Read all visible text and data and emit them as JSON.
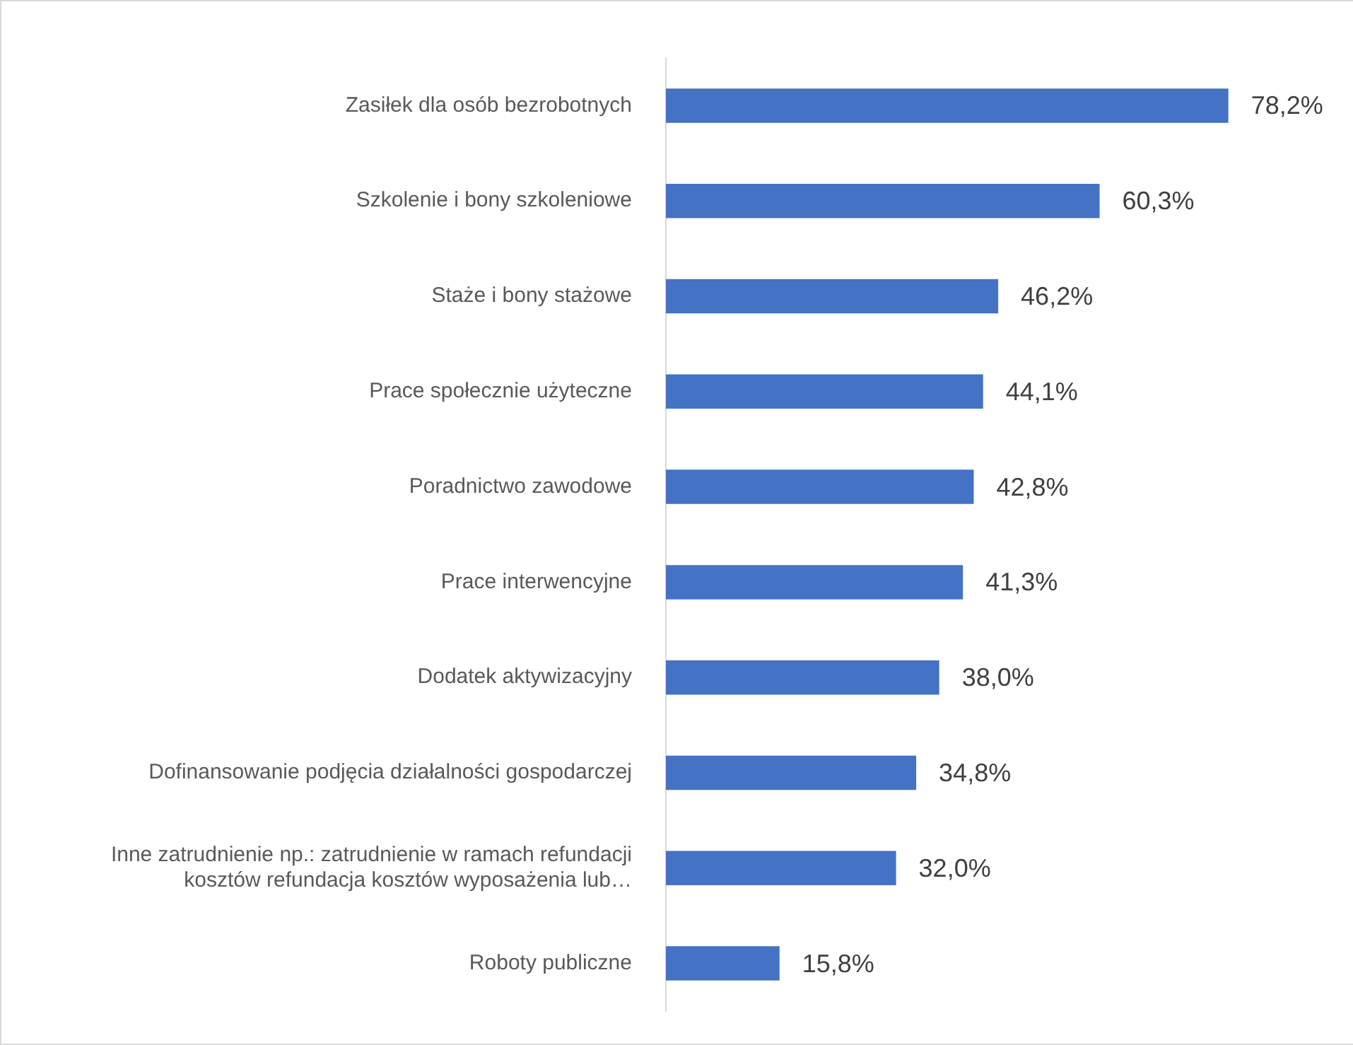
{
  "chart_data": {
    "type": "bar",
    "orientation": "horizontal",
    "categories": [
      "Zasiłek dla osób bezrobotnych",
      "Szkolenie i bony szkoleniowe",
      "Staże i bony stażowe",
      "Prace społecznie użyteczne",
      "Poradnictwo zawodowe",
      "Prace interwencyjne",
      "Dodatek aktywizacyjny",
      "Dofinansowanie podjęcia działalności gospodarczej",
      "Inne zatrudnienie np.: zatrudnienie w ramach refundacji\nkosztów refundacja kosztów wyposażenia lub…",
      "Roboty publiczne"
    ],
    "values": [
      78.2,
      60.3,
      46.2,
      44.1,
      42.8,
      41.3,
      38.0,
      34.8,
      32.0,
      15.8
    ],
    "value_labels": [
      "78,2%",
      "60,3%",
      "46,2%",
      "44,1%",
      "42,8%",
      "41,3%",
      "38,0%",
      "34,8%",
      "32,0%",
      "15,8%"
    ],
    "color": "#4472c4",
    "legend": false
  }
}
